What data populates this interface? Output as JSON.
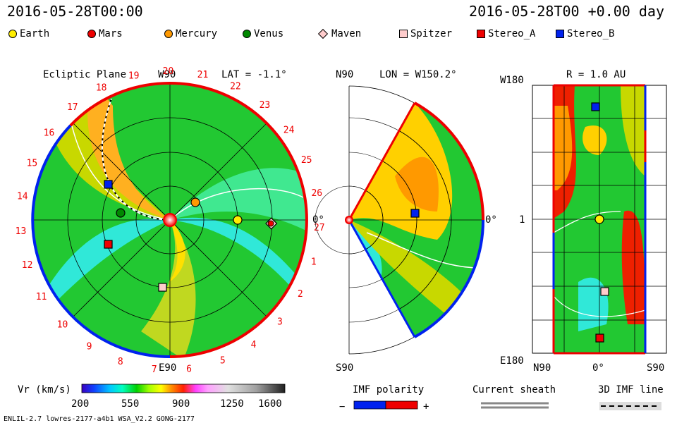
{
  "header": {
    "left_time": "2016-05-28T00:00",
    "right_time": "2016-05-28T00 +0.00 day"
  },
  "legend": [
    {
      "name": "Earth",
      "color": "#ffee00",
      "shape": "circle"
    },
    {
      "name": "Mars",
      "color": "#ee0000",
      "shape": "circle"
    },
    {
      "name": "Mercury",
      "color": "#ff9900",
      "shape": "circle"
    },
    {
      "name": "Venus",
      "color": "#008800",
      "shape": "circle"
    },
    {
      "name": "Maven",
      "color": "#ffcccc",
      "shape": "diamond"
    },
    {
      "name": "Spitzer",
      "color": "#ffcccc",
      "shape": "square"
    },
    {
      "name": "Stereo_A",
      "color": "#ee0000",
      "shape": "square"
    },
    {
      "name": "Stereo_B",
      "color": "#0022ee",
      "shape": "square"
    }
  ],
  "ecliptic": {
    "title": "Ecliptic Plane",
    "top_label": "W90",
    "lat_label": "LAT = -1.1°",
    "bottom_label": "E90",
    "right_label": "0°",
    "ticks": [
      "19",
      "20",
      "21",
      "22",
      "23",
      "24",
      "25",
      "26",
      "27",
      "1",
      "2",
      "3",
      "4",
      "5",
      "6",
      "7",
      "8",
      "9",
      "10",
      "11",
      "12",
      "13",
      "14",
      "15",
      "16",
      "17",
      "18"
    ]
  },
  "meridional": {
    "top_label": "N90",
    "lon_label": "LON = W150.2°",
    "bottom_label": "S90",
    "right_label": "0°"
  },
  "radial": {
    "r_label": "R = 1.0 AU",
    "top_label": "W180",
    "mid_label": "1",
    "bottom_label": "E180",
    "x_left": "N90",
    "x_mid": "0°",
    "x_right": "S90"
  },
  "colorbar": {
    "label": "Vr (km/s)",
    "ticks": [
      "200",
      "550",
      "900",
      "1250",
      "1600"
    ]
  },
  "imf": {
    "label": "IMF polarity",
    "minus": "−",
    "plus": "+",
    "neg_color": "#0022ee",
    "pos_color": "#ee0000"
  },
  "sheath": {
    "label": "Current sheath"
  },
  "imfline": {
    "label": "3D IMF line"
  },
  "footer": {
    "model": "ENLIL-2.7 lowres-2177-a4b1 WSA_V2.2 GONG-2177"
  }
}
